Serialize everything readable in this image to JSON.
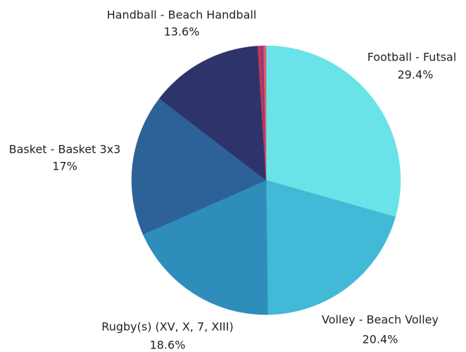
{
  "chart_data": {
    "type": "pie",
    "categories": [
      "Football - Futsal",
      "Volley - Beach Volley",
      "Rugby(s) (XV, X, 7, XIII)",
      "Basket - Basket 3x3",
      "Handball - Beach Handball",
      null,
      null,
      null
    ],
    "values": [
      29.4,
      20.4,
      18.6,
      17,
      13.6,
      0.4,
      0.3,
      0.3
    ],
    "value_labels": [
      "29.4%",
      "20.4%",
      "18.6%",
      "17%",
      "13.6%",
      null,
      null,
      null
    ],
    "colors": [
      "#6ae3e8",
      "#42b9d6",
      "#2f8dbc",
      "#2c6298",
      "#2f336b",
      "#c0395a",
      "#8e3a78",
      "#e05c6b"
    ]
  }
}
